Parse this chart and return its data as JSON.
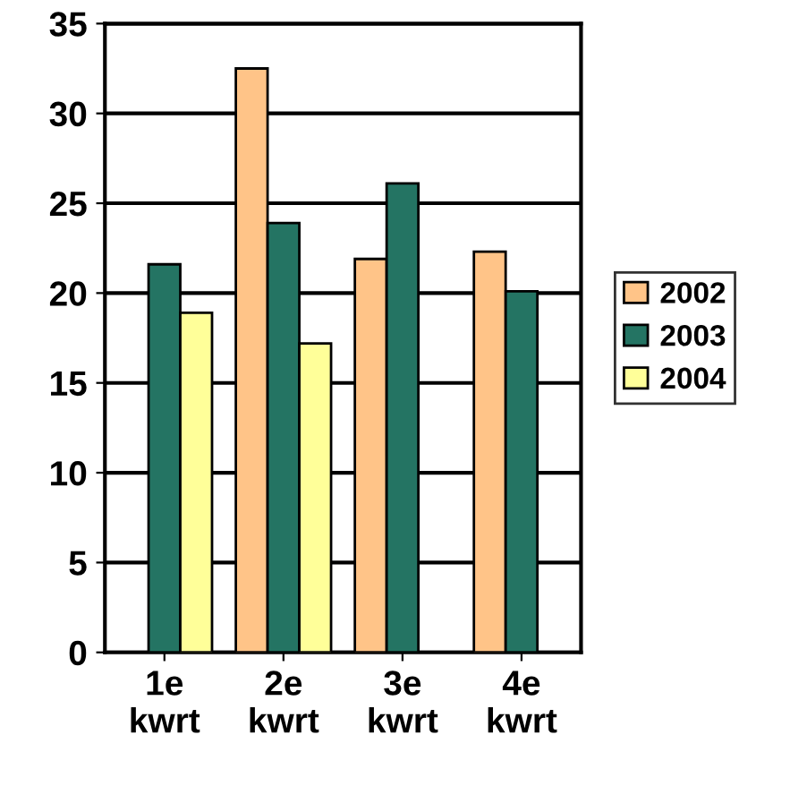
{
  "chart_data": {
    "type": "bar",
    "categories": [
      "1e\nkwrt",
      "2e\nkwrt",
      "3e\nkwrt",
      "4e\nkwrt"
    ],
    "series": [
      {
        "name": "2002",
        "color": "#ffc488",
        "values": [
          null,
          32.5,
          21.9,
          22.3
        ]
      },
      {
        "name": "2003",
        "color": "#247463",
        "values": [
          21.6,
          23.9,
          26.1,
          20.1
        ]
      },
      {
        "name": "2004",
        "color": "#ffff99",
        "values": [
          18.9,
          17.2,
          null,
          null
        ]
      }
    ],
    "ylim": [
      0,
      35
    ],
    "yticks": [
      0,
      5,
      10,
      15,
      20,
      25,
      30,
      35
    ],
    "grid": "y",
    "legend": "right"
  }
}
